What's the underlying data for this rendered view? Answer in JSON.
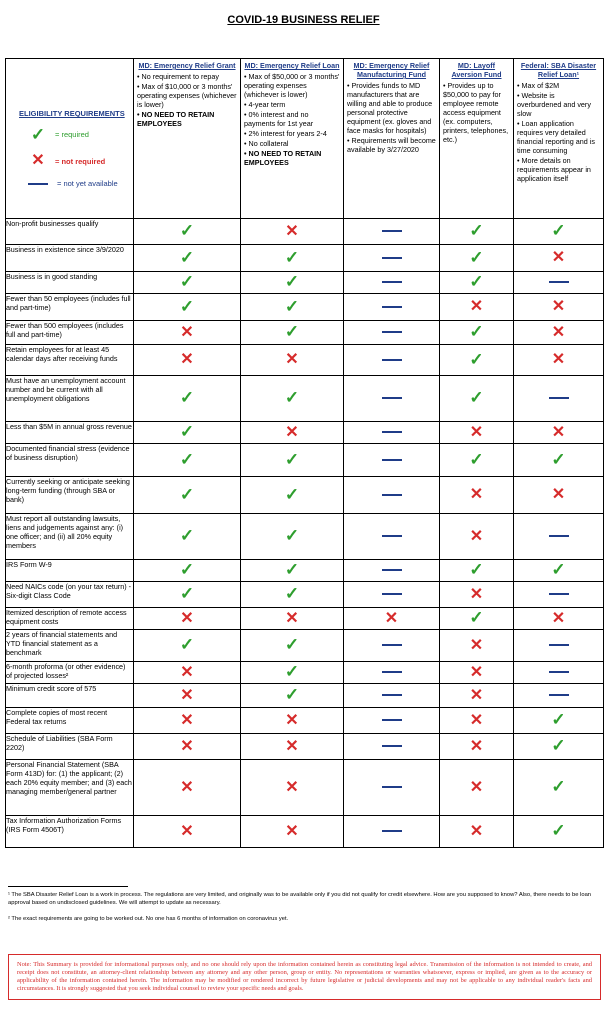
{
  "title": "COVID-19 BUSINESS RELIEF",
  "legend": {
    "heading": "ELIGIBILITY REQUIREMENTS",
    "required": "= required",
    "not_required": "= not required",
    "not_available": "= not yet available"
  },
  "columns": [
    {
      "title": "MD: Emergency Relief Grant",
      "bullets": [
        "No requirement to repay",
        "Max of $10,000 or 3 months' operating expenses (whichever is lower)",
        "NO NEED TO RETAIN EMPLOYEES"
      ],
      "strong_index": 2
    },
    {
      "title": "MD: Emergency Relief Loan",
      "bullets": [
        "Max of $50,000 or 3 months' operating expenses (whichever is lower)",
        "4-year term",
        "0% interest and no payments for 1st year",
        "2% interest for years 2-4",
        "No collateral",
        "NO NEED TO RETAIN EMPLOYEES"
      ],
      "strong_index": 5
    },
    {
      "title": "MD: Emergency Relief Manufacturing Fund",
      "bullets": [
        "Provides funds to MD manufacturers that are willing and able to produce personal protective equipment (ex. gloves and face masks for hospitals)",
        "Requirements will become available by 3/27/2020"
      ],
      "strong_index": -1
    },
    {
      "title": "MD: Layoff Aversion Fund",
      "bullets": [
        "Provides up to $50,000 to pay for employee remote access equipment (ex. computers, printers, telephones, etc.)"
      ],
      "strong_index": -1
    },
    {
      "title": "Federal: SBA Disaster Relief Loan¹",
      "bullets": [
        "Max of $2M",
        "Website is overburdened and very slow",
        "Loan application requires very detailed financial reporting and is time consuming",
        "More details on requirements appear in application itself"
      ],
      "strong_index": -1
    }
  ],
  "rows": [
    {
      "label": "Non-profit businesses qualify",
      "marks": [
        "check",
        "x",
        "dash",
        "check",
        "check"
      ]
    },
    {
      "label": "Business in existence since 3/9/2020",
      "marks": [
        "check",
        "check",
        "dash",
        "check",
        "x"
      ]
    },
    {
      "label": "Business is in good standing",
      "marks": [
        "check",
        "check",
        "dash",
        "check",
        "dash"
      ]
    },
    {
      "label": "Fewer than 50 employees (includes full and part-time)",
      "marks": [
        "check",
        "check",
        "dash",
        "x",
        "x"
      ]
    },
    {
      "label": "Fewer than 500 employees (includes full and part-time)",
      "marks": [
        "x",
        "check",
        "dash",
        "check",
        "x"
      ]
    },
    {
      "label": "Retain employees for at least 45 calendar days after receiving funds",
      "marks": [
        "x",
        "x",
        "dash",
        "check",
        "x"
      ]
    },
    {
      "label": "Must have an unemployment account number and be current with all unemployment obligations",
      "marks": [
        "check",
        "check",
        "dash",
        "check",
        "dash"
      ]
    },
    {
      "label": "Less than $5M in annual gross revenue",
      "marks": [
        "check",
        "x",
        "dash",
        "x",
        "x"
      ]
    },
    {
      "label": "Documented financial stress (evidence of business disruption)",
      "marks": [
        "check",
        "check",
        "dash",
        "check",
        "check"
      ]
    },
    {
      "label": "Currently seeking or anticipate seeking long-term funding (through SBA or bank)",
      "marks": [
        "check",
        "check",
        "dash",
        "x",
        "x"
      ]
    },
    {
      "label": "Must report all outstanding lawsuits, liens and judgements against any: (i) one officer; and (ii) all 20% equity members",
      "marks": [
        "check",
        "check",
        "dash",
        "x",
        "dash"
      ]
    },
    {
      "label": "IRS Form W-9",
      "marks": [
        "check",
        "check",
        "dash",
        "check",
        "check"
      ]
    },
    {
      "label": "Need NAICs code (on your tax return) - Six-digit Class Code",
      "marks": [
        "check",
        "check",
        "dash",
        "x",
        "dash"
      ]
    },
    {
      "label": "Itemized description of remote access equipment costs",
      "marks": [
        "x",
        "x",
        "x",
        "check",
        "x"
      ]
    },
    {
      "label": "2 years of financial statements and YTD financial statement as a benchmark",
      "marks": [
        "check",
        "check",
        "dash",
        "x",
        "dash"
      ]
    },
    {
      "label": "6-month proforma (or other evidence) of projected losses²",
      "marks": [
        "x",
        "check",
        "dash",
        "x",
        "dash"
      ]
    },
    {
      "label": "Minimum credit score of 575",
      "marks": [
        "x",
        "check",
        "dash",
        "x",
        "dash"
      ]
    },
    {
      "label": "Complete copies of most recent Federal tax returns",
      "marks": [
        "x",
        "x",
        "dash",
        "x",
        "check"
      ]
    },
    {
      "label": "Schedule of Liabilities (SBA Form 2202)",
      "marks": [
        "x",
        "x",
        "dash",
        "x",
        "check"
      ]
    },
    {
      "label": "Personal Financial Statement (SBA Form 413D) for: (1) the applicant; (2) each 20% equity member; and (3) each managing member/general partner",
      "marks": [
        "x",
        "x",
        "dash",
        "x",
        "check"
      ]
    },
    {
      "label": "Tax Information Authorization Forms (IRS Form 4506T)",
      "marks": [
        "x",
        "x",
        "dash",
        "x",
        "check"
      ]
    }
  ],
  "footnotes": [
    "¹ The SBA Disaster Relief Loan is a work in process.  The regulations are very limited, and originally was to be available only if you did not qualify for credit elsewhere.  How are you supposed to know?  Also, there needs to be loan approval based on undisclosed guidelines.  We will attempt to update as necessary.",
    "² The exact requirements are going to be worked out.  No one has 6 months of information on coronavirus yet."
  ],
  "disclaimer": "Note: This Summary is provided for informational purposes only, and no one should rely upon the information contained herein as constituting legal advice. Transmission of the information is not intended to create, and receipt does not constitute, an attorney-client relationship between any attorney and any other person, group or entity. No representations or warranties whatsoever, express or implied, are given as to the accuracy or applicability of the information contained herein. The information may be modified or rendered incorrect by future legislative or judicial developments and may not be applicable to any individual reader's facts and circumstances. It is strongly suggested that you seek individual counsel to review your specific needs and goals.",
  "colors": {
    "check": "#2e9e2e",
    "x": "#d62b2b",
    "dash": "#1f3c88"
  }
}
